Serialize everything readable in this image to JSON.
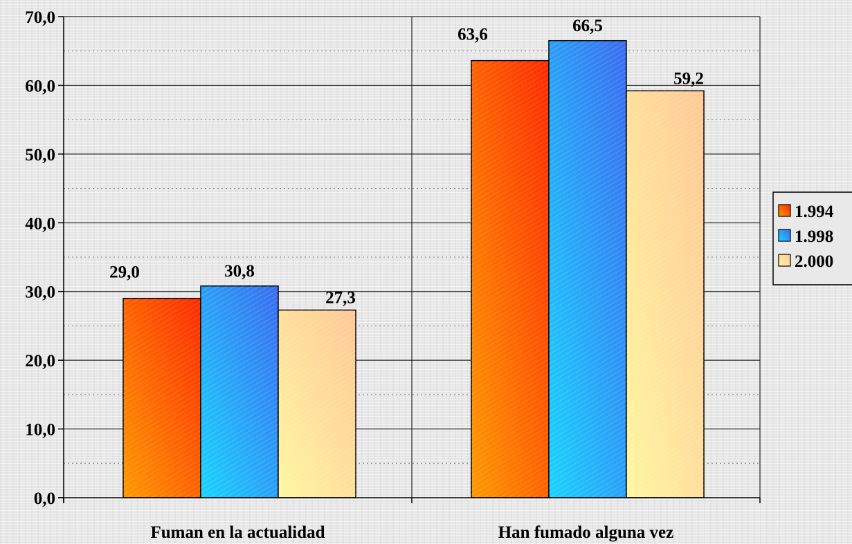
{
  "chart_data": {
    "type": "bar",
    "title": "",
    "xlabel": "",
    "ylabel": "",
    "categories": [
      "Fuman en la actualidad",
      "Han fumado alguna vez"
    ],
    "series": [
      {
        "name": "1.994",
        "values": [
          29.0,
          63.6
        ],
        "value_labels": [
          "29,0",
          "63,6"
        ],
        "colors": [
          "#ff9900",
          "#ff2a00"
        ]
      },
      {
        "name": "1.998",
        "values": [
          30.8,
          66.5
        ],
        "value_labels": [
          "30,8",
          "66,5"
        ],
        "colors": [
          "#19d4ff",
          "#3a6cf0"
        ]
      },
      {
        "name": "2.000",
        "values": [
          27.3,
          59.2
        ],
        "value_labels": [
          "27,3",
          "59,2"
        ],
        "colors": [
          "#fff7a0",
          "#ffc896"
        ]
      }
    ],
    "ylim": [
      0,
      70
    ],
    "ytick_labels": [
      "0,0",
      "10,0",
      "20,0",
      "30,0",
      "40,0",
      "50,0",
      "60,0",
      "70,0"
    ],
    "grid": true,
    "legend_position": "right"
  }
}
